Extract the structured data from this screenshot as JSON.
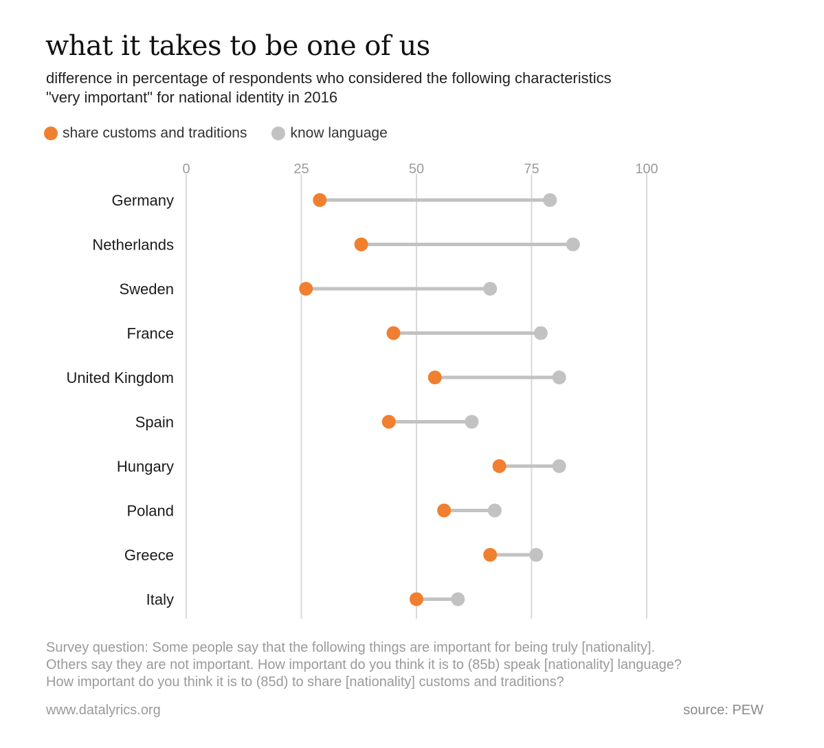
{
  "title": "what it takes to be one of us",
  "subtitle": {
    "line1": "difference in percentage of respondents who considered the following characteristics",
    "line2": "\"very important\" for national identity in 2016"
  },
  "colors": {
    "customs": "#f07f2f",
    "language": "#c2c2c2",
    "gridline": "#d9d9d9"
  },
  "legend": [
    {
      "label": "share customs and traditions",
      "color_key": "customs"
    },
    {
      "label": "know language",
      "color_key": "language"
    }
  ],
  "chart_data": {
    "type": "dumbbell",
    "xlim": [
      0,
      100
    ],
    "ticks": [
      0,
      25,
      50,
      75,
      100
    ],
    "tick_labels": [
      "0",
      "25",
      "50",
      "75",
      "100"
    ],
    "grid": true,
    "legend_position": "top-left",
    "categories": [
      "Germany",
      "Netherlands",
      "Sweden",
      "France",
      "United Kingdom",
      "Spain",
      "Hungary",
      "Poland",
      "Greece",
      "Italy"
    ],
    "series": [
      {
        "name": "share customs and traditions",
        "values": [
          29,
          38,
          26,
          45,
          54,
          44,
          68,
          56,
          66,
          50
        ]
      },
      {
        "name": "know language",
        "values": [
          79,
          84,
          66,
          77,
          81,
          62,
          81,
          67,
          76,
          59
        ]
      }
    ]
  },
  "note": {
    "line1": "Survey question: Some people say that the following things are important for being truly [nationality].",
    "line2": "Others say they are not important. How important do you think it is to (85b) speak [nationality] language?",
    "line3": "How important do you think it is to (85d) to share [nationality]  customs and traditions?"
  },
  "footer": {
    "website": "www.datalyrics.org",
    "source": "source: PEW"
  }
}
